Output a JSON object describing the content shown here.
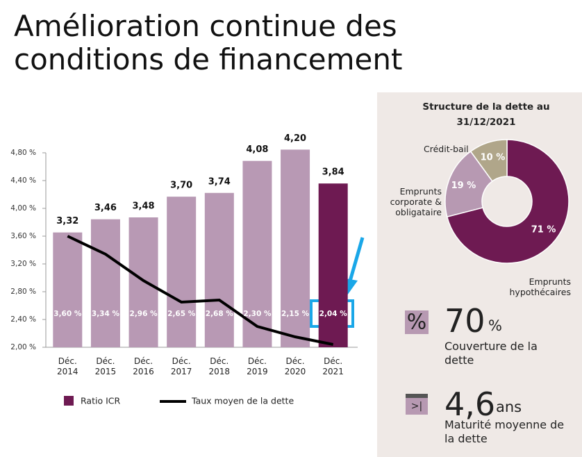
{
  "title": "Amélioration continue des conditions de financement",
  "chart_data": [
    {
      "type": "bar",
      "categories": [
        "Déc. 2014",
        "Déc. 2015",
        "Déc. 2016",
        "Déc. 2017",
        "Déc. 2018",
        "Déc. 2019",
        "Déc. 2020",
        "Déc. 2021"
      ],
      "series": [
        {
          "name": "Ratio ICR",
          "type": "bar",
          "axis": "y2",
          "color": "#6e1a52",
          "colors": [
            "#b899b4",
            "#b899b4",
            "#b899b4",
            "#b899b4",
            "#b899b4",
            "#b899b4",
            "#b899b4",
            "#6e1a52"
          ],
          "values": [
            3.32,
            3.46,
            3.48,
            3.7,
            3.74,
            4.08,
            4.2,
            3.84
          ],
          "value_labels": [
            "3,32",
            "3,46",
            "3,48",
            "3,70",
            "3,74",
            "4,08",
            "4,20",
            "3,84"
          ]
        },
        {
          "name": "Taux moyen de la dette",
          "type": "line",
          "color": "#000000",
          "values": [
            3.6,
            3.34,
            2.96,
            2.65,
            2.68,
            2.3,
            2.15,
            2.04
          ],
          "value_labels": [
            "3,60 %",
            "3,34 %",
            "2,96 %",
            "2,65 %",
            "2,68 %",
            "2,30 %",
            "2,15 %",
            "2,04 %"
          ]
        }
      ],
      "ylim": [
        2.0,
        4.9
      ],
      "yticks": [
        {
          "value": 2.0,
          "label": "2,00 %"
        },
        {
          "value": 2.4,
          "label": "2,40 %"
        },
        {
          "value": 2.8,
          "label": "2,80 %"
        },
        {
          "value": 3.2,
          "label": "3,20 %"
        },
        {
          "value": 3.6,
          "label": "3,60 %"
        },
        {
          "value": 4.0,
          "label": "4,00 %"
        },
        {
          "value": 4.4,
          "label": "4,40 %"
        },
        {
          "value": 4.8,
          "label": "4,80 %"
        }
      ],
      "y2lim": [
        2.1,
        4.24
      ],
      "legend": "bottom"
    },
    {
      "type": "pie",
      "title": "Structure de la dette au 31/12/2021",
      "categories": [
        "Emprunts hypothécaires",
        "Emprunts corporate & obligataire",
        "Crédit-bail"
      ],
      "values": [
        71,
        19,
        10
      ],
      "value_labels": [
        "71 %",
        "19 %",
        "10 %"
      ],
      "colors": [
        "#6e1a52",
        "#b799b2",
        "#b0a68a"
      ],
      "donut": true
    }
  ],
  "kpis": [
    {
      "value": "70",
      "unit": "%",
      "label": "Couverture de la dette"
    },
    {
      "value": "4,6",
      "unit": "ans",
      "label": "Maturité moyenne de la dette"
    }
  ]
}
